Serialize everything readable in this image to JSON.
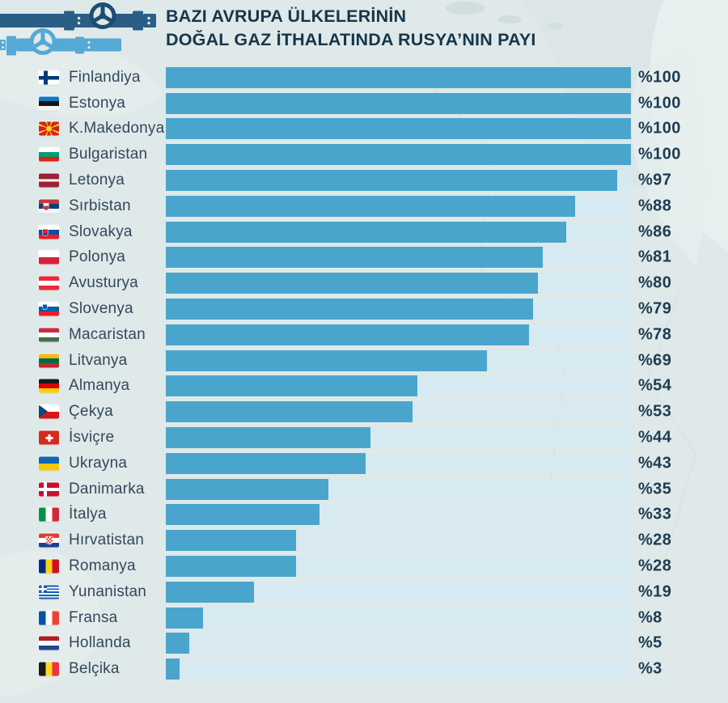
{
  "header": {
    "title_line1": "BAZI AVRUPA ÜLKELERİNİN",
    "title_line2": "DOĞAL GAZ İTHALATINDA RUSYA’NIN PAYI",
    "pipeline_icon": "gas-pipeline-valve-icon"
  },
  "colors": {
    "background": "#dfe9e9",
    "bar_fill": "#4aa5cd",
    "bar_track": "#d7e9f1",
    "title_text": "#17364b",
    "label_text": "#33485c",
    "value_text": "#1d3c52",
    "pipe_dark": "#2b5e86",
    "pipe_light": "#55a9d4"
  },
  "rows": [
    {
      "country": "Finlandiya",
      "flag_icon": "finland-flag",
      "value": 100,
      "value_label": "%100"
    },
    {
      "country": "Estonya",
      "flag_icon": "estonia-flag",
      "value": 100,
      "value_label": "%100"
    },
    {
      "country": "K.Makedonya",
      "flag_icon": "north-macedonia-flag",
      "value": 100,
      "value_label": "%100"
    },
    {
      "country": "Bulgaristan",
      "flag_icon": "bulgaria-flag",
      "value": 100,
      "value_label": "%100"
    },
    {
      "country": "Letonya",
      "flag_icon": "latvia-flag",
      "value": 97,
      "value_label": "%97"
    },
    {
      "country": "Sırbistan",
      "flag_icon": "serbia-flag",
      "value": 88,
      "value_label": "%88"
    },
    {
      "country": "Slovakya",
      "flag_icon": "slovakia-flag",
      "value": 86,
      "value_label": "%86"
    },
    {
      "country": "Polonya",
      "flag_icon": "poland-flag",
      "value": 81,
      "value_label": "%81"
    },
    {
      "country": "Avusturya",
      "flag_icon": "austria-flag",
      "value": 80,
      "value_label": "%80"
    },
    {
      "country": "Slovenya",
      "flag_icon": "slovenia-flag",
      "value": 79,
      "value_label": "%79"
    },
    {
      "country": "Macaristan",
      "flag_icon": "hungary-flag",
      "value": 78,
      "value_label": "%78"
    },
    {
      "country": "Litvanya",
      "flag_icon": "lithuania-flag",
      "value": 69,
      "value_label": "%69"
    },
    {
      "country": "Almanya",
      "flag_icon": "germany-flag",
      "value": 54,
      "value_label": "%54"
    },
    {
      "country": "Çekya",
      "flag_icon": "czechia-flag",
      "value": 53,
      "value_label": "%53"
    },
    {
      "country": "İsviçre",
      "flag_icon": "switzerland-flag",
      "value": 44,
      "value_label": "%44"
    },
    {
      "country": "Ukrayna",
      "flag_icon": "ukraine-flag",
      "value": 43,
      "value_label": "%43"
    },
    {
      "country": "Danimarka",
      "flag_icon": "denmark-flag",
      "value": 35,
      "value_label": "%35"
    },
    {
      "country": "İtalya",
      "flag_icon": "italy-flag",
      "value": 33,
      "value_label": "%33"
    },
    {
      "country": "Hırvatistan",
      "flag_icon": "croatia-flag",
      "value": 28,
      "value_label": "%28"
    },
    {
      "country": "Romanya",
      "flag_icon": "romania-flag",
      "value": 28,
      "value_label": "%28"
    },
    {
      "country": "Yunanistan",
      "flag_icon": "greece-flag",
      "value": 19,
      "value_label": "%19"
    },
    {
      "country": "Fransa",
      "flag_icon": "france-flag",
      "value": 8,
      "value_label": "%8"
    },
    {
      "country": "Hollanda",
      "flag_icon": "netherlands-flag",
      "value": 5,
      "value_label": "%5"
    },
    {
      "country": "Belçika",
      "flag_icon": "belgium-flag",
      "value": 3,
      "value_label": "%3"
    }
  ],
  "chart_data": {
    "type": "bar",
    "orientation": "horizontal",
    "title": "BAZI AVRUPA ÜLKELERİNİN DOĞAL GAZ İTHALATINDA RUSYA’NIN PAYI",
    "categories": [
      "Finlandiya",
      "Estonya",
      "K.Makedonya",
      "Bulgaristan",
      "Letonya",
      "Sırbistan",
      "Slovakya",
      "Polonya",
      "Avusturya",
      "Slovenya",
      "Macaristan",
      "Litvanya",
      "Almanya",
      "Çekya",
      "İsviçre",
      "Ukrayna",
      "Danimarka",
      "İtalya",
      "Hırvatistan",
      "Romanya",
      "Yunanistan",
      "Fransa",
      "Hollanda",
      "Belçika"
    ],
    "values": [
      100,
      100,
      100,
      100,
      97,
      88,
      86,
      81,
      80,
      79,
      78,
      69,
      54,
      53,
      44,
      43,
      35,
      33,
      28,
      28,
      19,
      8,
      5,
      3
    ],
    "value_labels": [
      "%100",
      "%100",
      "%100",
      "%100",
      "%97",
      "%88",
      "%86",
      "%81",
      "%80",
      "%79",
      "%78",
      "%69",
      "%54",
      "%53",
      "%44",
      "%43",
      "%35",
      "%33",
      "%28",
      "%28",
      "%19",
      "%8",
      "%5",
      "%3"
    ],
    "unit": "percent",
    "xlim": [
      0,
      100
    ],
    "grid": false,
    "legend": false,
    "bar_color": "#4aa5cd",
    "track_color": "#d7e9f1"
  }
}
